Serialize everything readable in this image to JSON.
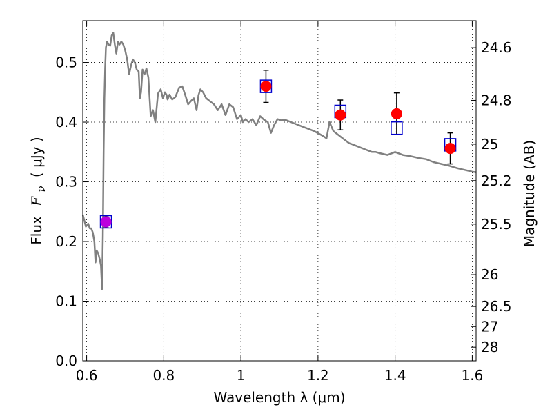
{
  "chart_data": {
    "type": "scatter",
    "title": "",
    "xlabel": "Wavelength  λ (μm)",
    "ylabel": "Flux  F_ν ( μJy )",
    "ylabel_parts": {
      "prefix": "Flux",
      "symbol": "F",
      "subscript": "ν",
      "unit": "( μJy )"
    },
    "y2label": "Magnitude (AB)",
    "xlim": [
      0.59,
      1.61
    ],
    "ylim": [
      0.0,
      0.57
    ],
    "grid": true,
    "x_ticks": [
      {
        "value": 0.6,
        "label": "0.6"
      },
      {
        "value": 0.8,
        "label": "0.8"
      },
      {
        "value": 1.0,
        "label": "1"
      },
      {
        "value": 1.2,
        "label": "1.2"
      },
      {
        "value": 1.4,
        "label": "1.4"
      },
      {
        "value": 1.6,
        "label": "1.6"
      }
    ],
    "y_ticks": [
      {
        "value": 0.0,
        "label": "0.0"
      },
      {
        "value": 0.1,
        "label": "0.1"
      },
      {
        "value": 0.2,
        "label": "0.2"
      },
      {
        "value": 0.3,
        "label": "0.3"
      },
      {
        "value": 0.4,
        "label": "0.4"
      },
      {
        "value": 0.5,
        "label": "0.5"
      }
    ],
    "y2_ticks": [
      {
        "flux": 0.5248,
        "label": "24.6"
      },
      {
        "flux": 0.4365,
        "label": "24.8"
      },
      {
        "flux": 0.3631,
        "label": "25"
      },
      {
        "flux": 0.302,
        "label": "25.2"
      },
      {
        "flux": 0.2291,
        "label": "25.5"
      },
      {
        "flux": 0.1445,
        "label": "26"
      },
      {
        "flux": 0.0912,
        "label": "26.5"
      },
      {
        "flux": 0.0575,
        "label": "27"
      },
      {
        "flux": 0.0229,
        "label": "28"
      }
    ],
    "series": [
      {
        "kind": "model_spectrum",
        "color": "#808080",
        "x": [
          0.59,
          0.598,
          0.604,
          0.608,
          0.612,
          0.616,
          0.62,
          0.623,
          0.626,
          0.63,
          0.634,
          0.637,
          0.64,
          0.642,
          0.644,
          0.646,
          0.648,
          0.65,
          0.653,
          0.657,
          0.661,
          0.665,
          0.669,
          0.673,
          0.677,
          0.681,
          0.685,
          0.69,
          0.695,
          0.7,
          0.705,
          0.71,
          0.715,
          0.72,
          0.725,
          0.73,
          0.735,
          0.738,
          0.741,
          0.745,
          0.75,
          0.755,
          0.76,
          0.766,
          0.772,
          0.778,
          0.785,
          0.792,
          0.798,
          0.803,
          0.807,
          0.81,
          0.815,
          0.822,
          0.83,
          0.84,
          0.848,
          0.856,
          0.863,
          0.87,
          0.878,
          0.885,
          0.89,
          0.895,
          0.902,
          0.91,
          0.92,
          0.93,
          0.94,
          0.95,
          0.96,
          0.97,
          0.98,
          0.99,
          1.0,
          1.005,
          1.012,
          1.02,
          1.03,
          1.04,
          1.05,
          1.06,
          1.07,
          1.078,
          1.086,
          1.095,
          1.105,
          1.115,
          1.13,
          1.15,
          1.17,
          1.19,
          1.21,
          1.222,
          1.23,
          1.24,
          1.26,
          1.28,
          1.3,
          1.32,
          1.34,
          1.35,
          1.36,
          1.38,
          1.4,
          1.42,
          1.44,
          1.46,
          1.48,
          1.5,
          1.52,
          1.54,
          1.56,
          1.58,
          1.6,
          1.61
        ],
        "y": [
          0.245,
          0.225,
          0.23,
          0.222,
          0.222,
          0.215,
          0.2,
          0.165,
          0.185,
          0.18,
          0.17,
          0.16,
          0.12,
          0.21,
          0.35,
          0.44,
          0.49,
          0.525,
          0.535,
          0.53,
          0.528,
          0.545,
          0.55,
          0.53,
          0.515,
          0.535,
          0.53,
          0.535,
          0.53,
          0.52,
          0.505,
          0.48,
          0.495,
          0.505,
          0.5,
          0.488,
          0.485,
          0.44,
          0.45,
          0.488,
          0.48,
          0.49,
          0.475,
          0.41,
          0.42,
          0.4,
          0.448,
          0.455,
          0.44,
          0.45,
          0.446,
          0.438,
          0.446,
          0.438,
          0.442,
          0.458,
          0.46,
          0.445,
          0.43,
          0.435,
          0.44,
          0.42,
          0.445,
          0.455,
          0.45,
          0.44,
          0.435,
          0.43,
          0.42,
          0.43,
          0.412,
          0.43,
          0.425,
          0.405,
          0.412,
          0.4,
          0.405,
          0.4,
          0.405,
          0.395,
          0.41,
          0.404,
          0.4,
          0.382,
          0.395,
          0.405,
          0.403,
          0.404,
          0.4,
          0.395,
          0.39,
          0.385,
          0.378,
          0.373,
          0.4,
          0.385,
          0.375,
          0.365,
          0.36,
          0.355,
          0.35,
          0.35,
          0.348,
          0.345,
          0.35,
          0.345,
          0.343,
          0.34,
          0.338,
          0.333,
          0.33,
          0.327,
          0.323,
          0.32,
          0.317,
          0.316
        ]
      },
      {
        "kind": "model_photometry",
        "marker": "open-square",
        "color": "#0000cc",
        "x": [
          0.65,
          1.065,
          1.258,
          1.404,
          1.543
        ],
        "y": [
          0.233,
          0.46,
          0.418,
          0.39,
          0.362
        ]
      },
      {
        "kind": "observed_photometry",
        "marker": "filled-circle",
        "color": "#ff0000",
        "x": [
          0.65,
          1.065,
          1.258,
          1.404,
          1.543
        ],
        "y": [
          0.233,
          0.46,
          0.412,
          0.414,
          0.356
        ],
        "yerr": [
          0.01,
          0.027,
          0.025,
          0.035,
          0.026
        ],
        "first_point_color": "#bb00dd"
      }
    ]
  }
}
